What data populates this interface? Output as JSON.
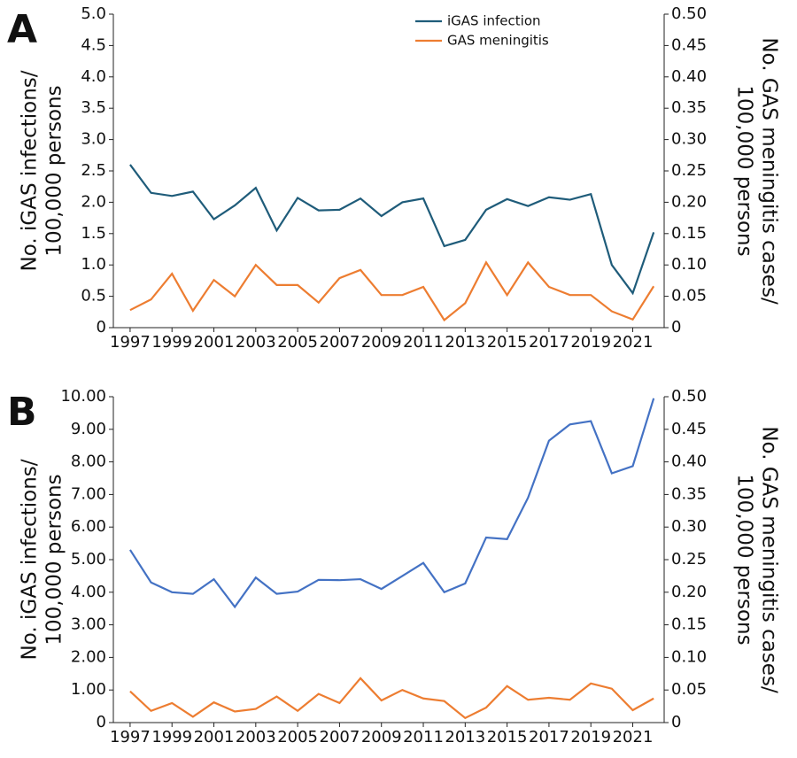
{
  "chart_data": [
    {
      "type": "line",
      "panel": "A",
      "ylabel": [
        "No. iGAS infections/",
        "100,000 persons"
      ],
      "y2label": [
        "No. GAS meningitis cases/",
        "100,000 persons"
      ],
      "x": [
        1997,
        1998,
        1999,
        2000,
        2001,
        2002,
        2003,
        2004,
        2005,
        2006,
        2007,
        2008,
        2009,
        2010,
        2011,
        2012,
        2013,
        2014,
        2015,
        2016,
        2017,
        2018,
        2019,
        2020,
        2021,
        2022
      ],
      "xlim": [
        1996.2,
        2022.5
      ],
      "xticks": [
        1997,
        1999,
        2001,
        2003,
        2005,
        2007,
        2009,
        2011,
        2013,
        2015,
        2017,
        2019,
        2021
      ],
      "ylim": [
        0,
        5
      ],
      "yticks": [
        0,
        {
          "value": 0.5,
          "label": "0.5"
        },
        {
          "value": 1,
          "label": "1.0"
        },
        {
          "value": 1.5,
          "label": "1.5"
        },
        {
          "value": 2,
          "label": "2.0"
        },
        {
          "value": 2.5,
          "label": "2.5"
        },
        {
          "value": 3,
          "label": "3.0"
        },
        {
          "value": 3.5,
          "label": "3.5"
        },
        {
          "value": 4,
          "label": "4.0"
        },
        {
          "value": 4.5,
          "label": "4.5"
        },
        {
          "value": 5,
          "label": "5.0"
        }
      ],
      "y2lim": [
        0,
        0.5
      ],
      "y2ticks": [
        0,
        {
          "value": 0.05,
          "label": "0.05"
        },
        {
          "value": 0.1,
          "label": "0.10"
        },
        {
          "value": 0.15,
          "label": "0.15"
        },
        {
          "value": 0.2,
          "label": "0.20"
        },
        {
          "value": 0.25,
          "label": "0.25"
        },
        {
          "value": 0.3,
          "label": "0.30"
        },
        {
          "value": 0.35,
          "label": "0.35"
        },
        {
          "value": 0.4,
          "label": "0.40"
        },
        {
          "value": 0.45,
          "label": "0.45"
        },
        {
          "value": 0.5,
          "label": "0.50"
        }
      ],
      "legend": "upper-center",
      "series": [
        {
          "name": "iGAS infection",
          "color": "#1f5c7a",
          "values": [
            2.6,
            2.15,
            2.1,
            2.17,
            1.73,
            1.95,
            2.23,
            1.55,
            2.07,
            1.87,
            1.88,
            2.06,
            1.78,
            2.0,
            2.06,
            1.3,
            1.4,
            1.88,
            2.05,
            1.94,
            2.08,
            2.04,
            2.13,
            1.0,
            0.55,
            1.52
          ]
        },
        {
          "name": "GAS meningitis",
          "color": "#ed7d31",
          "axis": "y2",
          "values": [
            0.028,
            0.045,
            0.086,
            0.027,
            0.076,
            0.05,
            0.1,
            0.068,
            0.068,
            0.04,
            0.079,
            0.092,
            0.052,
            0.052,
            0.065,
            0.012,
            0.039,
            0.104,
            0.052,
            0.104,
            0.065,
            0.052,
            0.052,
            0.026,
            0.013,
            0.066
          ]
        }
      ]
    },
    {
      "type": "line",
      "panel": "B",
      "ylabel": [
        "No. iGAS infections/",
        "100,000 persons"
      ],
      "y2label": [
        "No. GAS meningitis cases/",
        "100,000 persons"
      ],
      "x": [
        1997,
        1998,
        1999,
        2000,
        2001,
        2002,
        2003,
        2004,
        2005,
        2006,
        2007,
        2008,
        2009,
        2010,
        2011,
        2012,
        2013,
        2014,
        2015,
        2016,
        2017,
        2018,
        2019,
        2020,
        2021,
        2022
      ],
      "xlim": [
        1996.2,
        2022.5
      ],
      "xticks": [
        1997,
        1999,
        2001,
        2003,
        2005,
        2007,
        2009,
        2011,
        2013,
        2015,
        2017,
        2019,
        2021
      ],
      "ylim": [
        0,
        10
      ],
      "yticks": [
        0,
        {
          "value": 1,
          "label": "1.00"
        },
        {
          "value": 2,
          "label": "2.00"
        },
        {
          "value": 3,
          "label": "3.00"
        },
        {
          "value": 4,
          "label": "4.00"
        },
        {
          "value": 5,
          "label": "5.00"
        },
        {
          "value": 6,
          "label": "6.00"
        },
        {
          "value": 7,
          "label": "7.00"
        },
        {
          "value": 8,
          "label": "8.00"
        },
        {
          "value": 9,
          "label": "9.00"
        },
        {
          "value": 10,
          "label": "10.00"
        }
      ],
      "y2lim": [
        0,
        0.5
      ],
      "y2ticks": [
        0,
        {
          "value": 0.05,
          "label": "0.05"
        },
        {
          "value": 0.1,
          "label": "0.10"
        },
        {
          "value": 0.15,
          "label": "0.15"
        },
        {
          "value": 0.2,
          "label": "0.20"
        },
        {
          "value": 0.25,
          "label": "0.25"
        },
        {
          "value": 0.3,
          "label": "0.30"
        },
        {
          "value": 0.35,
          "label": "0.35"
        },
        {
          "value": 0.4,
          "label": "0.40"
        },
        {
          "value": 0.45,
          "label": "0.45"
        },
        {
          "value": 0.5,
          "label": "0.50"
        }
      ],
      "series": [
        {
          "name": "iGAS infection",
          "color": "#4472c4",
          "values": [
            5.3,
            4.3,
            4.0,
            3.95,
            4.4,
            3.55,
            4.45,
            3.95,
            4.02,
            4.38,
            4.37,
            4.4,
            4.1,
            4.5,
            4.9,
            4.0,
            4.27,
            5.68,
            5.63,
            6.9,
            8.65,
            9.15,
            9.25,
            7.65,
            7.87,
            9.95
          ]
        },
        {
          "name": "GAS meningitis",
          "color": "#ed7d31",
          "axis": "y2",
          "values": [
            0.048,
            0.018,
            0.03,
            0.009,
            0.031,
            0.017,
            0.021,
            0.04,
            0.018,
            0.044,
            0.03,
            0.068,
            0.034,
            0.05,
            0.037,
            0.033,
            0.007,
            0.023,
            0.056,
            0.035,
            0.038,
            0.035,
            0.06,
            0.052,
            0.019,
            0.037
          ]
        }
      ]
    }
  ]
}
